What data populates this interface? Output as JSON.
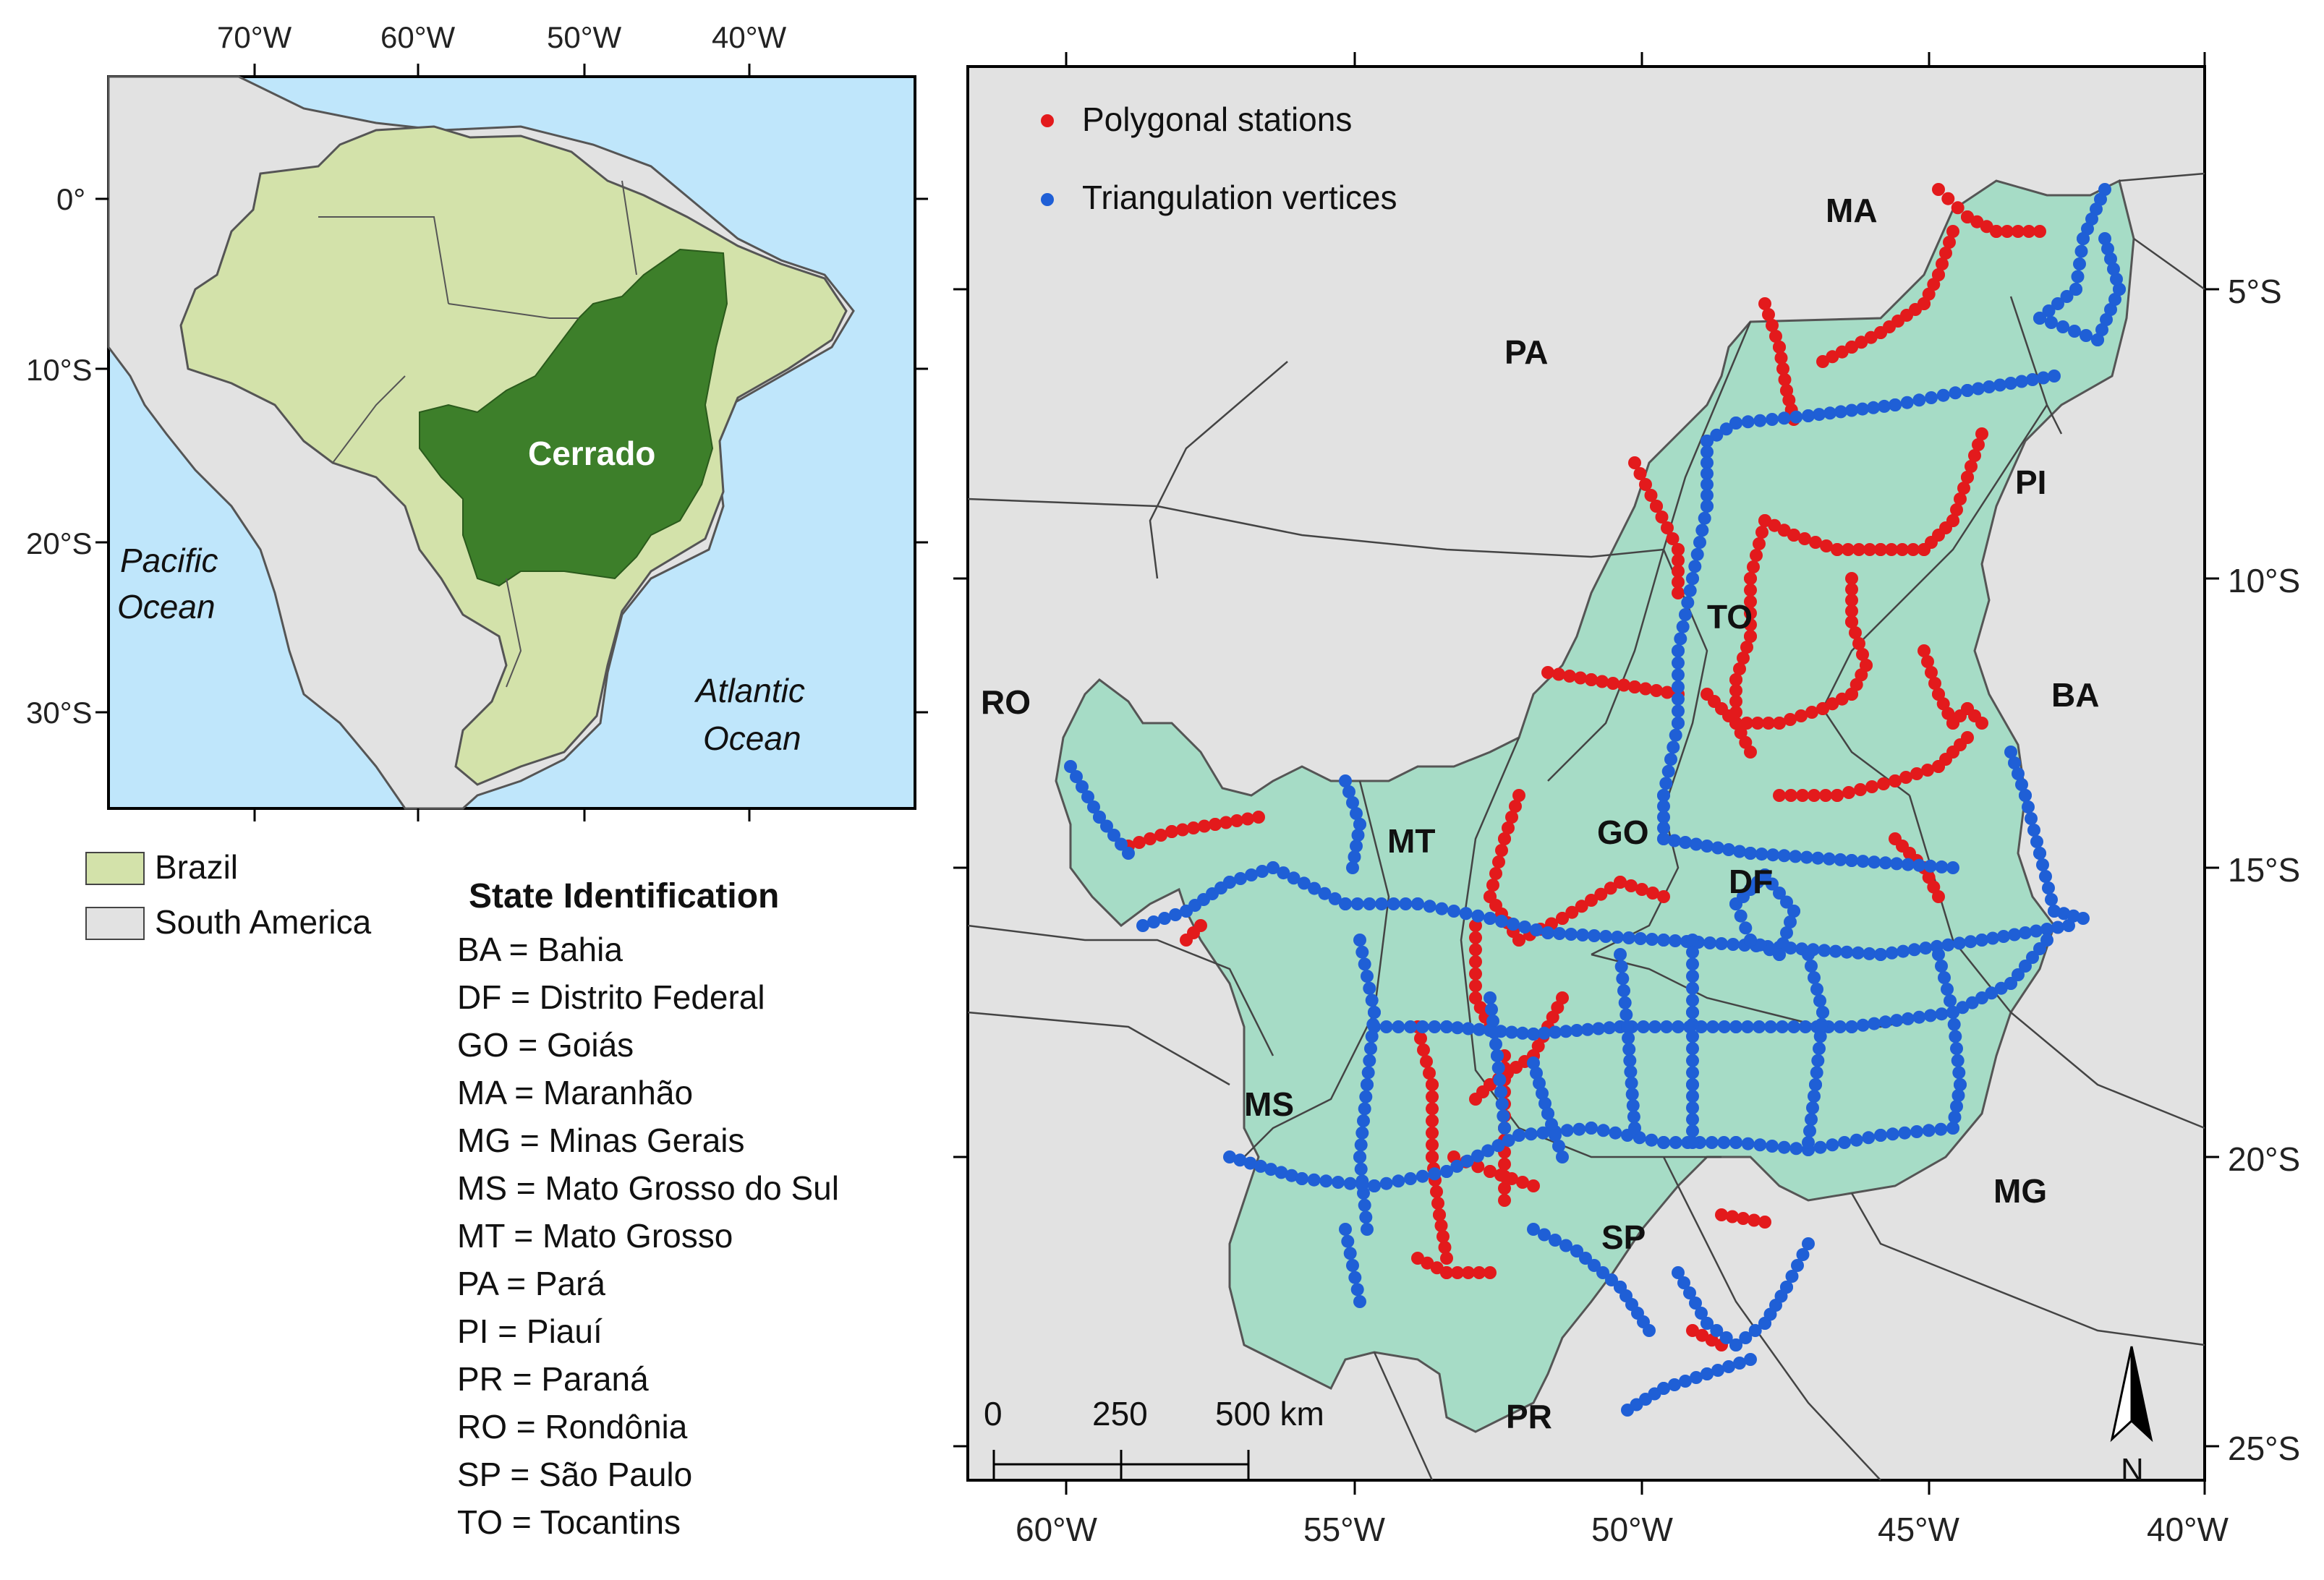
{
  "colors": {
    "ocean": "#bfe6fb",
    "brazil": "#d3e2aa",
    "cerrado": "#3d7f2a",
    "south_america": "#e2e2e2",
    "cerrado_detail": "#a6dcc6",
    "polygonal": "#e31a1c",
    "triangulation": "#1f5fd6"
  },
  "inset": {
    "top_ticks": [
      "70°W",
      "60°W",
      "50°W",
      "40°W"
    ],
    "left_ticks": [
      "0°",
      "10°S",
      "20°S",
      "30°S"
    ],
    "cerrado_label": "Cerrado",
    "pacific": [
      "Pacific",
      "Ocean"
    ],
    "atlantic": [
      "Atlantic",
      "Ocean"
    ]
  },
  "legend_inset": [
    {
      "label": "Brazil",
      "color": "#d3e2aa"
    },
    {
      "label": "South America",
      "color": "#e2e2e2"
    }
  ],
  "state_identification": {
    "title": "State Identification",
    "entries": [
      "BA = Bahia",
      "DF = Distrito Federal",
      "GO = Goiás",
      "MA = Maranhão",
      "MG = Minas Gerais",
      "MS = Mato Grosso do Sul",
      "MT = Mato Grosso",
      "PA = Pará",
      "PI = Piauí",
      "PR = Paraná",
      "RO = Rondônia",
      "SP = São Paulo",
      "TO = Tocantins"
    ]
  },
  "main_map": {
    "bottom_ticks": [
      "60°W",
      "55°W",
      "50°W",
      "45°W",
      "40°W"
    ],
    "right_ticks": [
      "5°S",
      "10°S",
      "15°S",
      "20°S",
      "25°S"
    ],
    "legend": [
      {
        "label": "Polygonal stations",
        "color": "#e31a1c"
      },
      {
        "label": "Triangulation vertices",
        "color": "#1f5fd6"
      }
    ],
    "states": [
      "MA",
      "PA",
      "PI",
      "TO",
      "BA",
      "RO",
      "MT",
      "GO",
      "DF",
      "MS",
      "MG",
      "SP",
      "PR"
    ],
    "scale_bar": {
      "ticks": [
        "0",
        "250",
        "500 km"
      ]
    },
    "north_label": "N"
  }
}
